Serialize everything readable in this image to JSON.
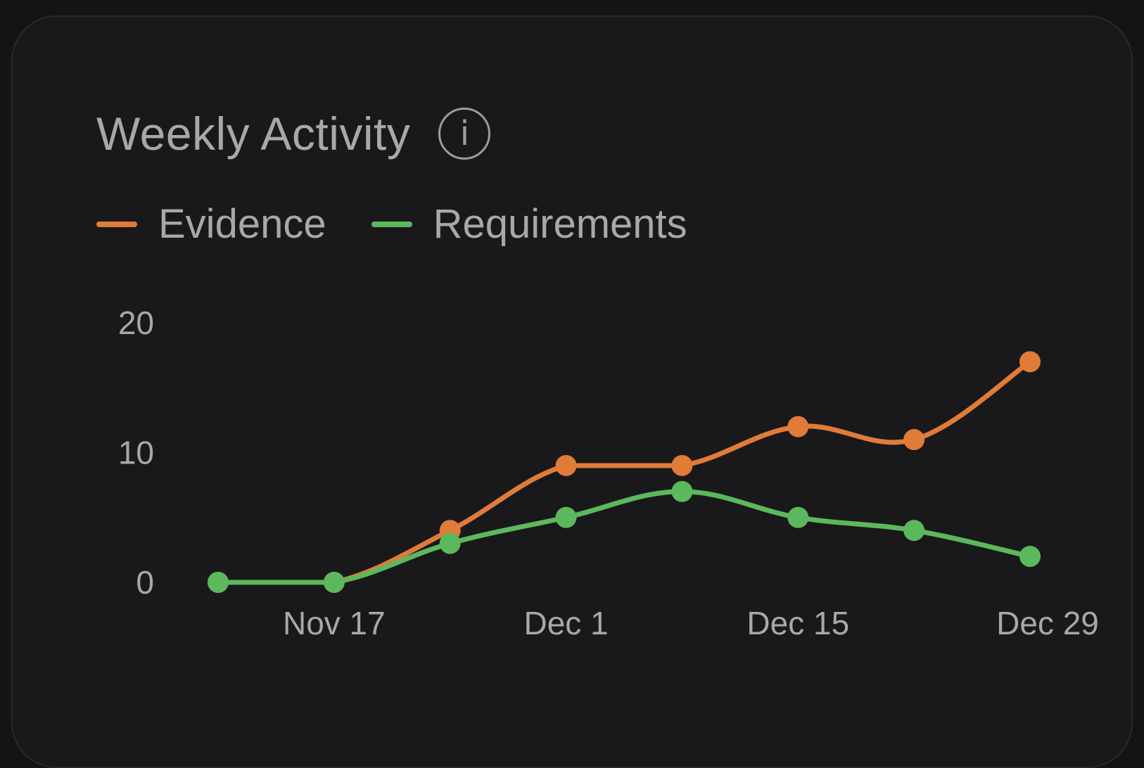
{
  "card": {
    "title": "Weekly Activity",
    "info_icon": "info-circle-icon"
  },
  "legend": [
    {
      "name": "Evidence",
      "color": "#e07b39"
    },
    {
      "name": "Requirements",
      "color": "#5cb85c"
    }
  ],
  "chart_data": {
    "type": "line",
    "title": "Weekly Activity",
    "xlabel": "",
    "ylabel": "",
    "x": [
      "Nov 10",
      "Nov 17",
      "Nov 24",
      "Dec 1",
      "Dec 8",
      "Dec 15",
      "Dec 22",
      "Dec 29"
    ],
    "x_tick_labels": [
      "Nov 17",
      "Dec 1",
      "Dec 15",
      "Dec 29"
    ],
    "y_ticks": [
      0,
      10,
      20
    ],
    "ylim": [
      0,
      20
    ],
    "grid": false,
    "legend_position": "top-left",
    "series": [
      {
        "name": "Evidence",
        "color": "#e07b39",
        "values": [
          0,
          0,
          4,
          9,
          9,
          12,
          11,
          17
        ]
      },
      {
        "name": "Requirements",
        "color": "#5cb85c",
        "values": [
          0,
          0,
          3,
          5,
          7,
          5,
          4,
          2
        ]
      }
    ]
  }
}
